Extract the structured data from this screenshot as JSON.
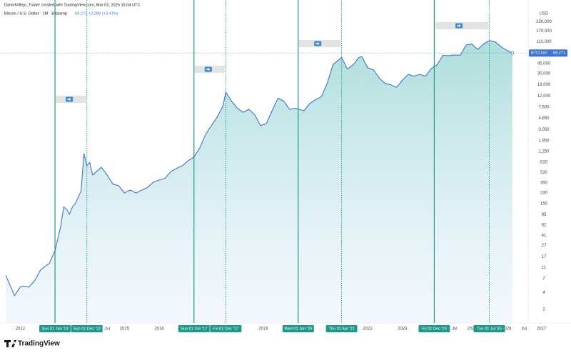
{
  "chart_data": {
    "type": "line",
    "author_line": "DanielVillejo_Trader created with TradingView.com, Mar 02, 2026 16:04 UTC",
    "title": "Bitcoin / U.S. Dollar · 1M · Bitstamp",
    "price": 69271,
    "price_label": "69,271",
    "change_label": "+2,286 (+3.41%)",
    "y_label": "USD",
    "brand": "TradingView",
    "log_scale": true,
    "grid": false,
    "x": [
      "2011-08",
      "2011-11",
      "2012-01",
      "2012-02",
      "2012-04",
      "2012-06",
      "2012-08",
      "2012-10",
      "2012-11",
      "2013-01",
      "2013-03",
      "2013-04",
      "2013-05",
      "2013-06",
      "2013-07",
      "2013-08",
      "2013-10",
      "2013-11",
      "2013-12",
      "2014-01",
      "2014-02",
      "2014-04",
      "2014-05",
      "2014-07",
      "2014-09",
      "2014-11",
      "2015-01",
      "2015-03",
      "2015-05",
      "2015-07",
      "2015-09",
      "2015-11",
      "2016-01",
      "2016-03",
      "2016-05",
      "2016-07",
      "2016-09",
      "2016-11",
      "2017-01",
      "2017-03",
      "2017-05",
      "2017-07",
      "2017-09",
      "2017-11",
      "2017-12",
      "2018-02",
      "2018-04",
      "2018-06",
      "2018-08",
      "2018-10",
      "2018-12",
      "2019-02",
      "2019-04",
      "2019-06",
      "2019-08",
      "2019-10",
      "2019-12",
      "2020-03",
      "2020-05",
      "2020-07",
      "2020-09",
      "2020-11",
      "2021-01",
      "2021-04",
      "2021-06",
      "2021-08",
      "2021-10",
      "2021-11",
      "2022-01",
      "2022-03",
      "2022-05",
      "2022-07",
      "2022-09",
      "2022-11",
      "2023-01",
      "2023-03",
      "2023-05",
      "2023-07",
      "2023-09",
      "2023-11",
      "2024-01",
      "2024-03",
      "2024-05",
      "2024-07",
      "2024-09",
      "2024-11",
      "2025-01",
      "2025-03",
      "2025-05",
      "2025-07",
      "2025-09",
      "2025-11",
      "2026-01",
      "2026-03"
    ],
    "series": [
      {
        "name": "BTCUSD",
        "color": "#3d74d1",
        "values": [
          8,
          3.5,
          5,
          5.2,
          5,
          6.5,
          10,
          12,
          13,
          22,
          60,
          130,
          118,
          97,
          130,
          150,
          250,
          1150,
          700,
          800,
          480,
          590,
          660,
          480,
          330,
          310,
          230,
          260,
          230,
          260,
          290,
          360,
          390,
          420,
          550,
          630,
          700,
          860,
          1000,
          1450,
          2500,
          3600,
          5100,
          8000,
          14000,
          9700,
          7300,
          6200,
          7000,
          5600,
          3600,
          3900,
          6600,
          11000,
          9800,
          7000,
          7300,
          6600,
          8800,
          10300,
          11700,
          20000,
          43000,
          58000,
          36000,
          43000,
          58000,
          60000,
          38000,
          35000,
          25000,
          20000,
          19000,
          17000,
          23000,
          29000,
          27000,
          29000,
          27000,
          37000,
          43000,
          63000,
          62000,
          64000,
          63000,
          96000,
          100000,
          80000,
          100000,
          115000,
          110000,
          90000,
          78000,
          69271
        ]
      }
    ],
    "xlim": [
      "2011-06",
      "2027-10"
    ],
    "xticks": [
      {
        "value": "2012-01",
        "label": "2012"
      },
      {
        "value": "2014-07",
        "label": "Jul"
      },
      {
        "value": "2015-01",
        "label": "2015"
      },
      {
        "value": "2016-01",
        "label": "2016"
      },
      {
        "value": "2019-01",
        "label": "2019"
      },
      {
        "value": "2022-01",
        "label": "2022"
      },
      {
        "value": "2023-01",
        "label": "2023"
      },
      {
        "value": "2024-07",
        "label": "Jul"
      },
      {
        "value": "2025-01",
        "label": "2025"
      },
      {
        "value": "2026-01",
        "label": "2026"
      },
      {
        "value": "2026-07",
        "label": "Jul"
      },
      {
        "value": "2027-01",
        "label": "2027"
      }
    ],
    "markers": [
      {
        "date": "2013-01",
        "label": "Sun 01 Jan '13",
        "style": "solid"
      },
      {
        "date": "2013-12",
        "label": "Sun 01 Dec '13",
        "style": "dotted"
      },
      {
        "date": "2017-01",
        "label": "Sun 01 Jan '17",
        "style": "solid"
      },
      {
        "date": "2017-12",
        "label": "Fri 01 Dec '17",
        "style": "dotted"
      },
      {
        "date": "2020-01",
        "label": "Wed 01 Jan '20",
        "style": "solid"
      },
      {
        "date": "2021-04",
        "label": "Thu 01 Apr '21",
        "style": "dotted"
      },
      {
        "date": "2023-12",
        "label": "Fri 01 Dec '23",
        "style": "solid"
      },
      {
        "date": "2025-07",
        "label": "Tue 01 Jul '25",
        "style": "dotted"
      }
    ],
    "marker_color": "#1f9a8a",
    "ylim": [
      1.15,
      450000
    ],
    "yticks": [
      2,
      4,
      7,
      11,
      17,
      27,
      41,
      62,
      95,
      150,
      230,
      350,
      530,
      810,
      {
        "value": 1250,
        "label": "1,250"
      },
      {
        "value": 1950,
        "label": "1,950"
      },
      {
        "value": 3050,
        "label": "3,050"
      },
      {
        "value": 4850,
        "label": "4,850"
      },
      {
        "value": 7600,
        "label": "7,600"
      },
      {
        "value": 12000,
        "label": "12,000"
      },
      {
        "value": 19000,
        "label": "19,000"
      },
      {
        "value": 30000,
        "label": "30,000"
      },
      {
        "value": 45000,
        "label": "45,000"
      },
      {
        "value": 70000,
        "label": "70,000"
      },
      {
        "value": 110000,
        "label": "110,000"
      },
      {
        "value": 170000,
        "label": "170,000"
      },
      {
        "value": 250000,
        "label": "250,000"
      }
    ]
  }
}
